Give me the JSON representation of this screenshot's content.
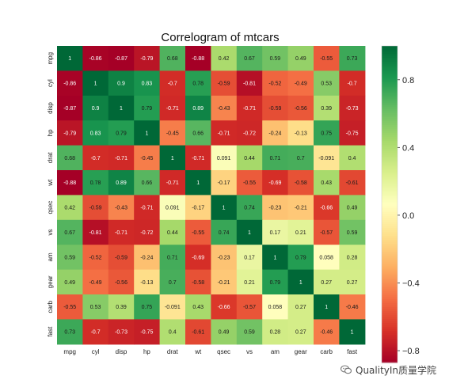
{
  "chart_data": {
    "type": "heatmap",
    "title": "Correlogram of mtcars",
    "labels": [
      "mpg",
      "cyl",
      "disp",
      "hp",
      "drat",
      "wt",
      "qsec",
      "vs",
      "am",
      "gear",
      "carb",
      "fast"
    ],
    "values": [
      [
        1,
        -0.86,
        -0.87,
        -0.79,
        0.68,
        -0.88,
        0.42,
        0.67,
        0.59,
        0.49,
        -0.55,
        0.73
      ],
      [
        -0.86,
        1,
        0.9,
        0.83,
        -0.7,
        0.78,
        -0.59,
        -0.81,
        -0.52,
        -0.49,
        0.53,
        -0.7
      ],
      [
        -0.87,
        0.9,
        1,
        0.79,
        -0.71,
        0.89,
        -0.43,
        -0.71,
        -0.59,
        -0.56,
        0.39,
        -0.73
      ],
      [
        -0.79,
        0.83,
        0.79,
        1,
        -0.45,
        0.66,
        -0.71,
        -0.72,
        -0.24,
        -0.13,
        0.75,
        -0.75
      ],
      [
        0.68,
        -0.7,
        -0.71,
        -0.45,
        1,
        -0.71,
        0.091,
        0.44,
        0.71,
        0.7,
        -0.091,
        0.4
      ],
      [
        -0.88,
        0.78,
        0.89,
        0.66,
        -0.71,
        1,
        -0.17,
        -0.55,
        -0.69,
        -0.58,
        0.43,
        -0.61
      ],
      [
        0.42,
        -0.59,
        -0.43,
        -0.71,
        0.091,
        -0.17,
        1,
        0.74,
        -0.23,
        -0.21,
        -0.66,
        0.49
      ],
      [
        0.67,
        -0.81,
        -0.71,
        -0.72,
        0.44,
        -0.55,
        0.74,
        1,
        0.17,
        0.21,
        -0.57,
        0.59
      ],
      [
        0.59,
        -0.52,
        -0.59,
        -0.24,
        0.71,
        -0.69,
        -0.23,
        0.17,
        1,
        0.79,
        0.058,
        0.28
      ],
      [
        0.49,
        -0.49,
        -0.56,
        -0.13,
        0.7,
        -0.58,
        -0.21,
        0.21,
        0.79,
        1,
        0.27,
        0.27
      ],
      [
        -0.55,
        0.53,
        0.39,
        0.75,
        -0.091,
        0.43,
        -0.66,
        -0.57,
        0.058,
        0.27,
        1,
        -0.46
      ],
      [
        0.73,
        -0.7,
        -0.73,
        -0.75,
        0.4,
        -0.61,
        0.49,
        0.59,
        0.28,
        0.27,
        -0.46,
        1
      ]
    ],
    "colormap": [
      "#a50026",
      "#d73027",
      "#f46d43",
      "#fdae61",
      "#fee08b",
      "#ffffbf",
      "#d9ef8b",
      "#a6d96a",
      "#66bd63",
      "#1a9850",
      "#006837"
    ],
    "vmin": -0.87,
    "vmax": 1,
    "colorbar_ticks": [
      0.8,
      0.4,
      0.0,
      -0.4,
      -0.8
    ],
    "colorbar_tick_labels": [
      "0.8",
      "0.4",
      "0.0",
      "−0.4",
      "−0.8"
    ],
    "annotations": true,
    "grid": false
  },
  "watermark": {
    "text": "QualityIn质量学院",
    "icon": "wechat-icon"
  }
}
